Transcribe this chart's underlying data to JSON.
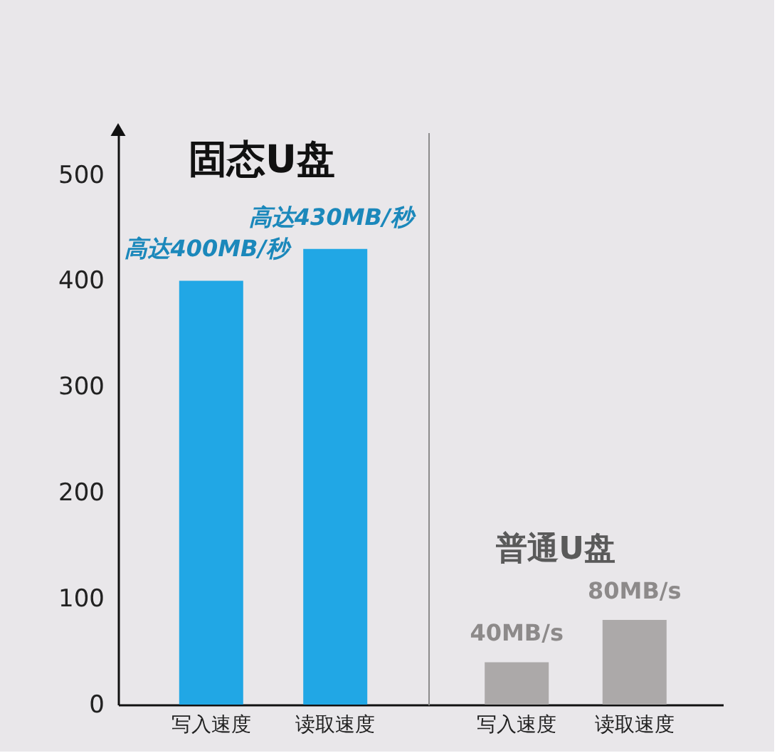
{
  "chart_data": [
    {
      "type": "bar",
      "title": "固态U盘",
      "categories": [
        "写入速度",
        "读取速度"
      ],
      "values": [
        400,
        430
      ],
      "color": "#21a7e5",
      "value_labels": [
        "高达400MB/秒",
        "高达430MB/秒"
      ],
      "ylim": [
        0,
        540
      ],
      "yticks": [
        0,
        100,
        200,
        300,
        400,
        500
      ]
    },
    {
      "type": "bar",
      "title": "普通U盘",
      "categories": [
        "写入速度",
        "读取速度"
      ],
      "values": [
        40,
        80
      ],
      "color": "#aca9a9",
      "value_labels": [
        "40MB/s",
        "80MB/s"
      ],
      "ylim": [
        0,
        540
      ],
      "tick_labels": "x"
    }
  ]
}
